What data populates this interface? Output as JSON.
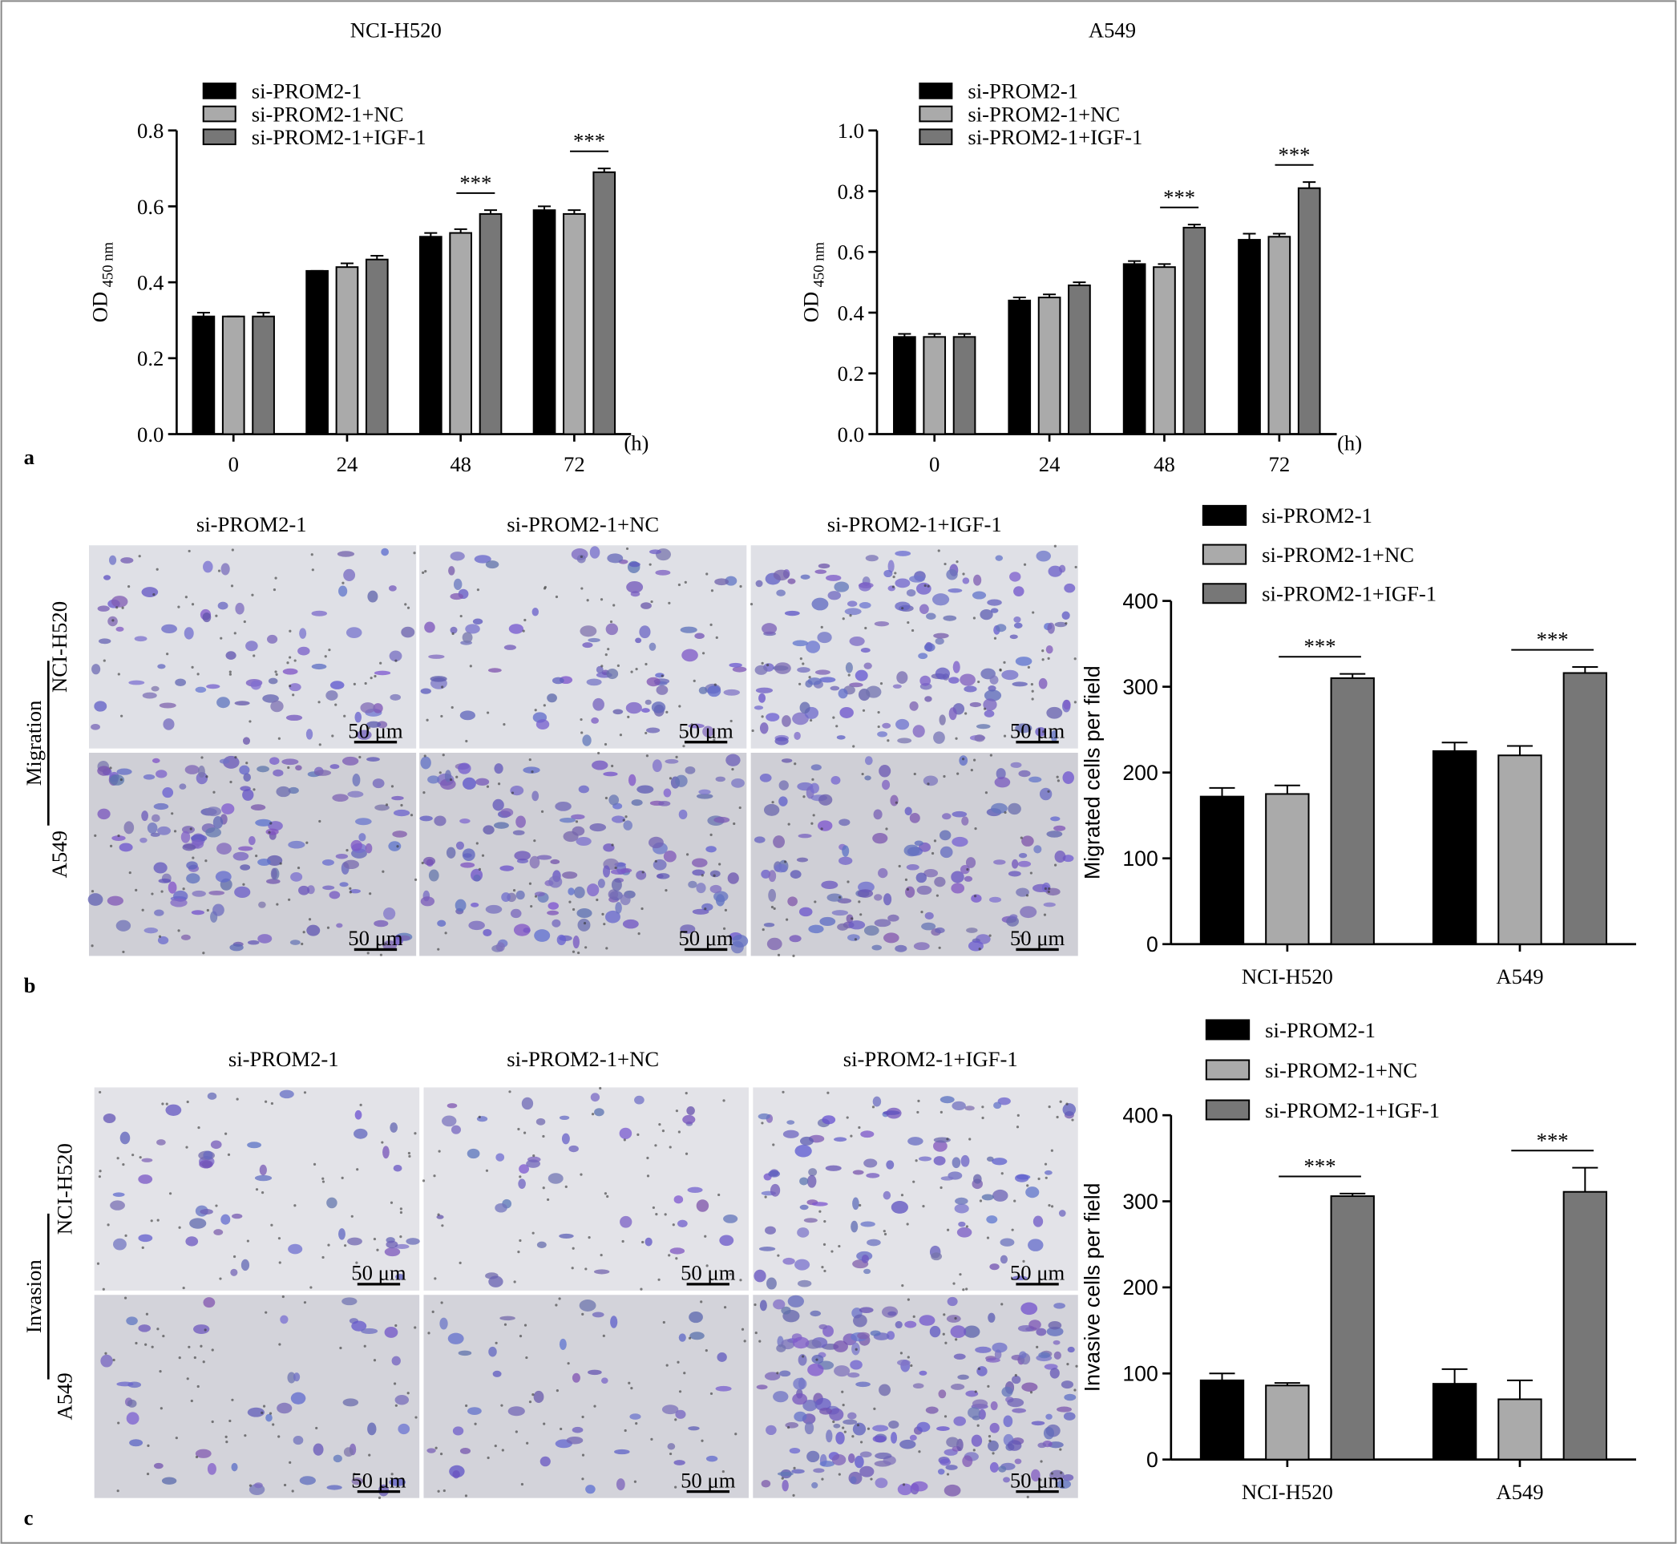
{
  "panel_labels": [
    "a",
    "b",
    "c"
  ],
  "chart_data": [
    {
      "type": "bar",
      "title": "NCI-H520",
      "y_label": "OD",
      "y_label_sub": "450 nm",
      "x_label": "(h)",
      "categories": [
        "0",
        "24",
        "48",
        "72"
      ],
      "series": [
        {
          "name": "si-PROM2-1",
          "color": "#000000",
          "values": [
            0.31,
            0.43,
            0.52,
            0.59
          ],
          "errors": [
            0.01,
            0.0,
            0.01,
            0.01
          ]
        },
        {
          "name": "si-PROM2-1+NC",
          "color": "#aaaaaa",
          "values": [
            0.31,
            0.44,
            0.53,
            0.58
          ],
          "errors": [
            0.0,
            0.01,
            0.01,
            0.01
          ]
        },
        {
          "name": "si-PROM2-1+IGF-1",
          "color": "#777777",
          "values": [
            0.31,
            0.46,
            0.58,
            0.69
          ],
          "errors": [
            0.01,
            0.01,
            0.01,
            0.01
          ]
        }
      ],
      "ylim": [
        0,
        0.8
      ],
      "yticks": [
        {
          "value": 0,
          "label": "0.0"
        },
        0.2,
        0.4,
        0.6,
        0.8
      ],
      "annotations": [
        {
          "text": "***",
          "x": "48"
        },
        {
          "text": "***",
          "x": "72"
        }
      ]
    },
    {
      "type": "bar",
      "title": "A549",
      "y_label": "OD",
      "y_label_sub": "450 nm",
      "x_label": "(h)",
      "categories": [
        "0",
        "24",
        "48",
        "72"
      ],
      "series": [
        {
          "name": "si-PROM2-1",
          "color": "#000000",
          "values": [
            0.32,
            0.44,
            0.56,
            0.64
          ],
          "errors": [
            0.01,
            0.01,
            0.01,
            0.02
          ]
        },
        {
          "name": "si-PROM2-1+NC",
          "color": "#aaaaaa",
          "values": [
            0.32,
            0.45,
            0.55,
            0.65
          ],
          "errors": [
            0.01,
            0.01,
            0.01,
            0.01
          ]
        },
        {
          "name": "si-PROM2-1+IGF-1",
          "color": "#777777",
          "values": [
            0.32,
            0.49,
            0.68,
            0.81
          ],
          "errors": [
            0.01,
            0.01,
            0.01,
            0.02
          ]
        }
      ],
      "ylim": [
        0,
        1
      ],
      "yticks": [
        {
          "value": 0,
          "label": "0.0"
        },
        0.2,
        0.4,
        0.6,
        0.8,
        {
          "value": 1,
          "label": "1.0"
        }
      ],
      "annotations": [
        {
          "text": "***",
          "x": "48"
        },
        {
          "text": "***",
          "x": "72"
        }
      ]
    },
    {
      "type": "bar",
      "y_label": "Migrated cells per field",
      "categories": [
        "NCI-H520",
        "A549"
      ],
      "series": [
        {
          "name": "si-PROM2-1",
          "color": "#000000",
          "values": [
            172,
            225
          ],
          "errors": [
            10,
            10
          ]
        },
        {
          "name": "si-PROM2-1+NC",
          "color": "#aaaaaa",
          "values": [
            175,
            220
          ],
          "errors": [
            10,
            11
          ]
        },
        {
          "name": "si-PROM2-1+IGF-1",
          "color": "#777777",
          "values": [
            310,
            316
          ],
          "errors": [
            5,
            7
          ]
        }
      ],
      "ylim": [
        0,
        400
      ],
      "yticks": [
        0,
        100,
        200,
        300,
        400
      ],
      "annotations": [
        {
          "text": "***",
          "x": "NCI-H520"
        },
        {
          "text": "***",
          "x": "A549"
        }
      ]
    },
    {
      "type": "bar",
      "y_label": "Invasive cells per field",
      "categories": [
        "NCI-H520",
        "A549"
      ],
      "series": [
        {
          "name": "si-PROM2-1",
          "color": "#000000",
          "values": [
            92,
            88
          ],
          "errors": [
            8,
            17
          ]
        },
        {
          "name": "si-PROM2-1+NC",
          "color": "#aaaaaa",
          "values": [
            86,
            70
          ],
          "errors": [
            3,
            22
          ]
        },
        {
          "name": "si-PROM2-1+IGF-1",
          "color": "#777777",
          "values": [
            306,
            311
          ],
          "errors": [
            3,
            28
          ]
        }
      ],
      "ylim": [
        0,
        400
      ],
      "yticks": [
        0,
        100,
        200,
        300,
        400
      ],
      "annotations": [
        {
          "text": "***",
          "x": "NCI-H520"
        },
        {
          "text": "***",
          "x": "A549"
        }
      ]
    }
  ],
  "micrographs": [
    {
      "group": "Migration",
      "columns": [
        "si-PROM2-1",
        "si-PROM2-1+NC",
        "si-PROM2-1+IGF-1"
      ],
      "rows": [
        "NCI-H520",
        "A549"
      ],
      "scale_bar": "50 μm"
    },
    {
      "group": "Invasion",
      "columns": [
        "si-PROM2-1",
        "si-PROM2-1+NC",
        "si-PROM2-1+IGF-1"
      ],
      "rows": [
        "NCI-H520",
        "A549"
      ],
      "scale_bar": "50 μm"
    }
  ]
}
